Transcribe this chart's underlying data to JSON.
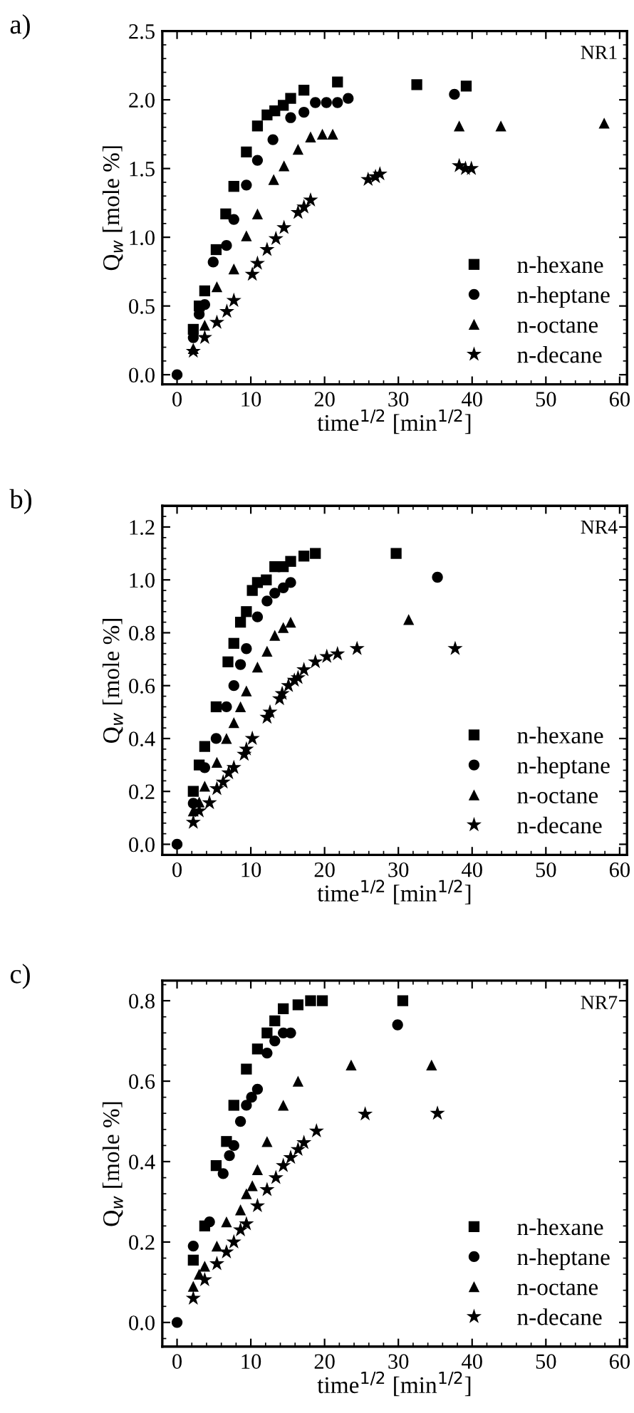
{
  "chart_data": [
    {
      "type": "scatter",
      "title": "a)",
      "xlabel": "time$^{1/2}$ [min$^{1/2}$]",
      "ylabel": "Q$_{w}$ [mole %]",
      "annotations": [
        "NR1"
      ],
      "xlim": [
        -2,
        61
      ],
      "xticks": [
        0,
        10,
        20,
        30,
        40,
        50,
        60
      ],
      "ylim": [
        -0.07,
        2.5
      ],
      "yticks": [
        {
          "value": 0,
          "label": "0.0"
        },
        0.5,
        {
          "value": 1,
          "label": "1.0"
        },
        1.5,
        {
          "value": 2,
          "label": "2.0"
        },
        2.5
      ],
      "legend": "bottom right",
      "grid": false,
      "series": [
        {
          "name": "n-hexane",
          "color": "#000000",
          "marker": "square",
          "x": [
            2.2,
            3.0,
            3.75,
            5.3,
            6.6,
            7.7,
            9.4,
            10.9,
            12.2,
            13.25,
            14.4,
            15.4,
            17.2,
            21.75,
            32.5,
            39.2
          ],
          "values": [
            0.33,
            0.5,
            0.61,
            0.91,
            1.17,
            1.37,
            1.62,
            1.81,
            1.89,
            1.92,
            1.96,
            2.01,
            2.07,
            2.13,
            2.11,
            2.1
          ]
        },
        {
          "name": "n-heptane",
          "color": "#000000",
          "marker": "circle",
          "x": [
            0,
            2.2,
            3.0,
            3.75,
            4.9,
            6.7,
            7.7,
            9.4,
            10.9,
            13.0,
            15.4,
            17.2,
            18.75,
            20.25,
            21.75,
            23.2,
            37.6
          ],
          "values": [
            0,
            0.27,
            0.44,
            0.51,
            0.82,
            0.94,
            1.13,
            1.38,
            1.56,
            1.71,
            1.87,
            1.91,
            1.98,
            1.98,
            1.98,
            2.01,
            2.04
          ]
        },
        {
          "name": "n-octane",
          "color": "#000000",
          "marker": "triangle",
          "x": [
            2.2,
            3.75,
            5.4,
            7.7,
            9.4,
            10.9,
            13.1,
            14.5,
            16.4,
            18.1,
            19.7,
            21.1,
            38.25,
            43.9,
            57.9
          ],
          "values": [
            0.19,
            0.36,
            0.64,
            0.77,
            1.01,
            1.17,
            1.42,
            1.52,
            1.64,
            1.73,
            1.75,
            1.75,
            1.81,
            1.81,
            1.83
          ]
        },
        {
          "name": "n-decane",
          "color": "#000000",
          "marker": "star",
          "x": [
            2.2,
            3.75,
            5.4,
            6.75,
            7.7,
            10.2,
            10.9,
            12.2,
            13.4,
            14.5,
            16.4,
            17.2,
            18.1,
            25.9,
            26.9,
            27.5,
            38.25,
            39.1,
            39.9
          ],
          "values": [
            0.17,
            0.27,
            0.38,
            0.46,
            0.54,
            0.73,
            0.81,
            0.91,
            0.99,
            1.07,
            1.18,
            1.22,
            1.27,
            1.42,
            1.44,
            1.46,
            1.52,
            1.5,
            1.5
          ]
        }
      ]
    },
    {
      "type": "scatter",
      "title": "b)",
      "xlabel": "time$^{1/2}$ [min$^{1/2}$]",
      "ylabel": "Q$_{w}$ [mole %]",
      "annotations": [
        "NR4"
      ],
      "xlim": [
        -2,
        61
      ],
      "xticks": [
        0,
        10,
        20,
        30,
        40,
        50,
        60
      ],
      "ylim": [
        -0.04,
        1.28
      ],
      "yticks": [
        {
          "value": 0,
          "label": "0.0"
        },
        0.2,
        0.4,
        0.6,
        0.8,
        {
          "value": 1,
          "label": "1.0"
        },
        1.2
      ],
      "legend": "bottom right",
      "grid": false,
      "series": [
        {
          "name": "n-hexane",
          "color": "#000000",
          "marker": "square",
          "x": [
            2.2,
            3.0,
            3.75,
            5.3,
            6.9,
            7.7,
            8.6,
            9.4,
            10.2,
            10.9,
            12.1,
            13.25,
            14.4,
            15.4,
            17.2,
            18.75,
            29.7
          ],
          "values": [
            0.2,
            0.3,
            0.37,
            0.52,
            0.69,
            0.76,
            0.84,
            0.88,
            0.96,
            0.99,
            1.0,
            1.05,
            1.05,
            1.07,
            1.09,
            1.1,
            1.1
          ]
        },
        {
          "name": "n-heptane",
          "color": "#000000",
          "marker": "circle",
          "x": [
            0,
            2.2,
            3.75,
            5.3,
            6.7,
            7.7,
            8.6,
            9.4,
            10.9,
            12.2,
            13.25,
            14.4,
            15.4,
            35.3
          ],
          "values": [
            0,
            0.155,
            0.29,
            0.4,
            0.52,
            0.6,
            0.68,
            0.74,
            0.86,
            0.92,
            0.95,
            0.97,
            0.99,
            1.01
          ]
        },
        {
          "name": "n-octane",
          "color": "#000000",
          "marker": "triangle",
          "x": [
            2.2,
            3.0,
            3.75,
            5.4,
            6.7,
            7.7,
            8.6,
            9.4,
            10.9,
            12.2,
            13.25,
            14.4,
            15.4,
            31.4
          ],
          "values": [
            0.126,
            0.16,
            0.22,
            0.31,
            0.4,
            0.46,
            0.52,
            0.58,
            0.67,
            0.73,
            0.79,
            0.82,
            0.84,
            0.85
          ]
        },
        {
          "name": "n-decane",
          "color": "#000000",
          "marker": "star",
          "x": [
            2.2,
            3.0,
            4.4,
            5.4,
            6.25,
            7.0,
            7.7,
            9.1,
            9.4,
            10.2,
            12.2,
            12.6,
            13.9,
            14.25,
            15.1,
            15.9,
            16.4,
            17.2,
            18.75,
            20.3,
            21.75,
            24.4,
            37.7
          ],
          "values": [
            0.083,
            0.126,
            0.157,
            0.21,
            0.235,
            0.27,
            0.29,
            0.34,
            0.36,
            0.4,
            0.48,
            0.5,
            0.55,
            0.57,
            0.6,
            0.62,
            0.63,
            0.66,
            0.69,
            0.71,
            0.72,
            0.74,
            0.74
          ]
        }
      ]
    },
    {
      "type": "scatter",
      "title": "c)",
      "xlabel": "time$^{1/2}$ [min$^{1/2}$]",
      "ylabel": "Q$_{w}$ [mole %]",
      "annotations": [
        "NR7"
      ],
      "xlim": [
        -2,
        61
      ],
      "xticks": [
        0,
        10,
        20,
        30,
        40,
        50,
        60
      ],
      "ylim": [
        -0.06,
        0.85
      ],
      "yticks": [
        {
          "value": 0,
          "label": "0.0"
        },
        0.2,
        0.4,
        0.6,
        0.8
      ],
      "legend": "bottom right",
      "grid": false,
      "series": [
        {
          "name": "n-hexane",
          "color": "#000000",
          "marker": "square",
          "x": [
            2.2,
            3.75,
            5.3,
            6.7,
            7.7,
            9.4,
            10.9,
            12.2,
            13.25,
            14.4,
            16.4,
            18.1,
            19.7,
            30.6
          ],
          "values": [
            0.155,
            0.24,
            0.39,
            0.45,
            0.54,
            0.63,
            0.68,
            0.72,
            0.75,
            0.78,
            0.79,
            0.8,
            0.8,
            0.8
          ]
        },
        {
          "name": "n-heptane",
          "color": "#000000",
          "marker": "circle",
          "x": [
            0,
            2.2,
            4.4,
            6.25,
            7.1,
            7.7,
            8.6,
            9.4,
            10.1,
            10.9,
            12.2,
            13.25,
            14.4,
            15.4,
            29.9
          ],
          "values": [
            0,
            0.19,
            0.25,
            0.37,
            0.415,
            0.44,
            0.5,
            0.54,
            0.56,
            0.58,
            0.67,
            0.7,
            0.72,
            0.72,
            0.74
          ]
        },
        {
          "name": "n-octane",
          "color": "#000000",
          "marker": "triangle",
          "x": [
            2.2,
            3.0,
            3.75,
            5.4,
            6.7,
            8.6,
            9.4,
            10.2,
            10.9,
            12.2,
            14.4,
            16.4,
            23.6,
            34.5
          ],
          "values": [
            0.09,
            0.12,
            0.14,
            0.19,
            0.25,
            0.28,
            0.32,
            0.34,
            0.38,
            0.45,
            0.54,
            0.6,
            0.64,
            0.64
          ]
        },
        {
          "name": "n-decane",
          "color": "#000000",
          "marker": "star",
          "x": [
            2.2,
            3.75,
            5.4,
            6.7,
            7.7,
            8.6,
            9.4,
            10.9,
            12.2,
            13.4,
            14.4,
            15.4,
            16.4,
            17.2,
            18.9,
            25.5,
            35.3
          ],
          "values": [
            0.06,
            0.106,
            0.146,
            0.175,
            0.2,
            0.23,
            0.245,
            0.29,
            0.33,
            0.36,
            0.39,
            0.41,
            0.43,
            0.447,
            0.476,
            0.518,
            0.52
          ]
        }
      ]
    }
  ]
}
